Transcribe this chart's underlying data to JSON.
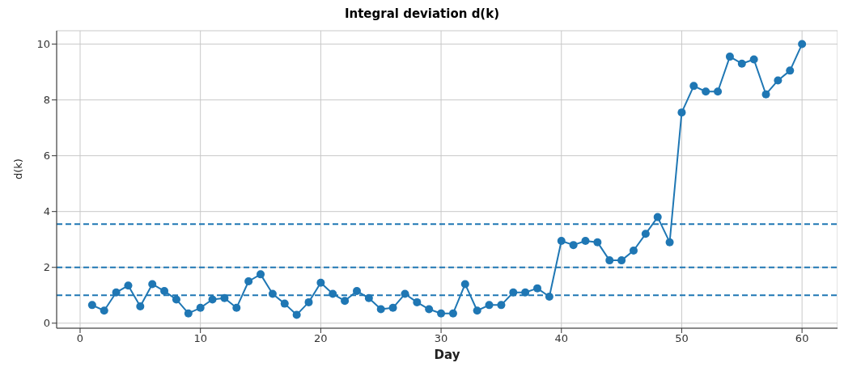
{
  "chart_data": {
    "type": "line",
    "title": "Integral deviation d(k)",
    "xlabel": "Day",
    "ylabel": "d(k)",
    "x": [
      1,
      2,
      3,
      4,
      5,
      6,
      7,
      8,
      9,
      10,
      11,
      12,
      13,
      14,
      15,
      16,
      17,
      18,
      19,
      20,
      21,
      22,
      23,
      24,
      25,
      26,
      27,
      28,
      29,
      30,
      31,
      32,
      33,
      34,
      35,
      36,
      37,
      38,
      39,
      40,
      41,
      42,
      43,
      44,
      45,
      46,
      47,
      48,
      49,
      50,
      51,
      52,
      53,
      54,
      55,
      56,
      57,
      58,
      59,
      60
    ],
    "series": [
      {
        "color": "#1f77b4",
        "values": [
          0.65,
          0.45,
          1.1,
          1.35,
          0.6,
          1.4,
          1.15,
          0.85,
          0.35,
          0.55,
          0.85,
          0.9,
          0.55,
          1.5,
          1.75,
          1.05,
          0.7,
          0.3,
          0.75,
          1.45,
          1.05,
          0.8,
          1.15,
          0.9,
          0.5,
          0.55,
          1.05,
          0.75,
          0.5,
          0.35,
          0.35,
          1.4,
          0.45,
          0.65,
          0.65,
          1.1,
          1.1,
          1.25,
          0.95,
          2.95,
          2.8,
          2.95,
          2.9,
          2.25,
          2.25,
          2.6,
          3.2,
          3.8,
          2.9,
          7.55,
          8.5,
          8.3,
          8.3,
          9.55,
          9.3,
          9.45,
          8.2,
          8.7,
          9.05,
          10.0
        ]
      }
    ],
    "xlim": [
      -1.95,
      62.95
    ],
    "xticks": [
      0,
      10,
      20,
      30,
      40,
      50,
      60
    ],
    "ylim": [
      -0.18,
      10.48
    ],
    "yticks": [
      0,
      2,
      4,
      6,
      8,
      10
    ],
    "ref_lines": [
      {
        "axis": "y",
        "value": 3.55,
        "color": "#1f77b4",
        "line_style": "dashed"
      },
      {
        "axis": "y",
        "value": 2,
        "color": "#1f77b4",
        "line_style": "dashed"
      },
      {
        "axis": "y",
        "value": 1,
        "color": "#1f77b4",
        "line_style": "dashed"
      }
    ],
    "grid": true,
    "marker": "circle",
    "line_style": "solid",
    "legend": false
  }
}
